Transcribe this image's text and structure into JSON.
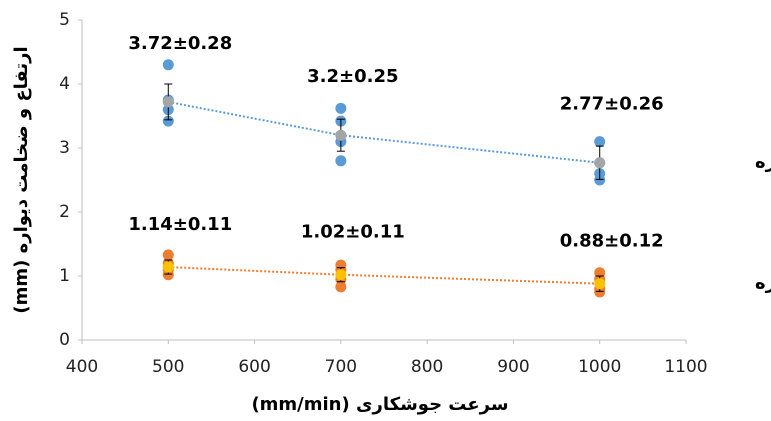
{
  "chart_data": {
    "type": "scatter",
    "x_label": "سرعت جوشکاری (mm/min)",
    "y_label": "ارتفاع و ضخامت دیواره (mm)",
    "xlim": [
      400,
      1100
    ],
    "xticks": [
      400,
      500,
      600,
      700,
      800,
      900,
      1000,
      1100
    ],
    "ylim": [
      0,
      5
    ],
    "yticks": [
      0,
      1,
      2,
      3,
      4,
      5
    ],
    "grid": false,
    "series": [
      {
        "name": "ارتفاع دیواره",
        "color": "#5b9bd5",
        "x": [
          500,
          500,
          500,
          500,
          700,
          700,
          700,
          700,
          1000,
          1000,
          1000,
          1000
        ],
        "values": [
          4.3,
          3.6,
          3.42,
          3.75,
          3.62,
          3.42,
          3.1,
          2.8,
          3.1,
          2.6,
          2.5,
          2.77
        ]
      },
      {
        "color": "#a5a5a5",
        "trendline_color": "#5b9bd5",
        "x": [
          500,
          700,
          1000
        ],
        "values": [
          3.72,
          3.2,
          2.77
        ],
        "errors": [
          0.28,
          0.25,
          0.26
        ],
        "value_labels": [
          "3.72±0.28",
          "3.2±0.25",
          "2.77±0.26"
        ]
      },
      {
        "name": "ضخامت دیواره",
        "color": "#ed7d31",
        "x": [
          500,
          500,
          500,
          500,
          700,
          700,
          700,
          700,
          1000,
          1000,
          1000,
          1000
        ],
        "values": [
          1.33,
          1.2,
          1.1,
          1.02,
          1.17,
          1.1,
          0.95,
          0.83,
          1.05,
          0.95,
          0.8,
          0.75
        ]
      },
      {
        "color": "#ffc000",
        "trendline_color": "#ed7d31",
        "x": [
          500,
          700,
          1000
        ],
        "values": [
          1.14,
          1.02,
          0.88
        ],
        "errors": [
          0.11,
          0.11,
          0.12
        ],
        "value_labels": [
          "1.14±0.11",
          "1.02±0.11",
          "0.88±0.12"
        ]
      }
    ]
  }
}
